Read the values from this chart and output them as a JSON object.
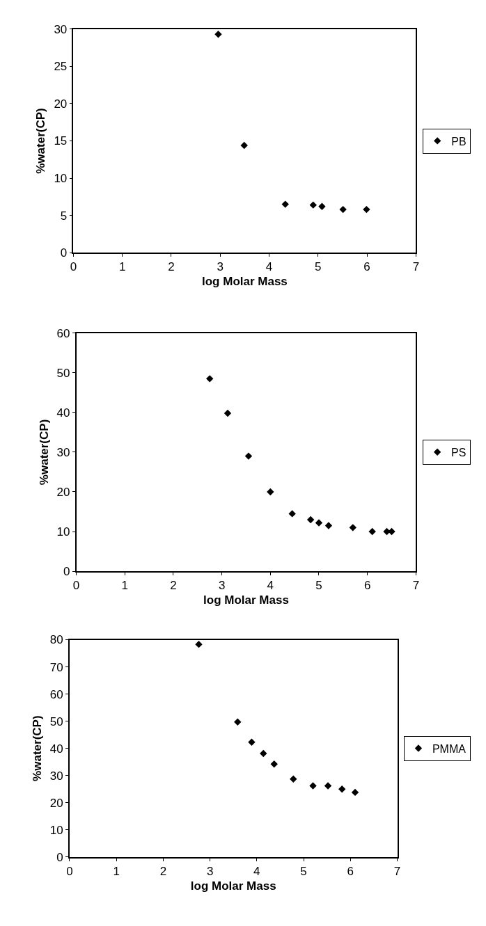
{
  "chart_data": [
    {
      "type": "scatter",
      "xlabel": "log Molar Mass",
      "ylabel": "%water(CP)",
      "x": [
        2.96,
        3.49,
        4.33,
        4.9,
        5.08,
        5.51,
        5.99
      ],
      "series": [
        {
          "name": "PB",
          "color": "#000000",
          "values": [
            29.3,
            14.4,
            6.5,
            6.4,
            6.2,
            5.8,
            5.8
          ]
        }
      ],
      "xlim": [
        0,
        7
      ],
      "xticks": [
        0,
        1,
        2,
        3,
        4,
        5,
        6,
        7
      ],
      "ylim": [
        0,
        30
      ],
      "yticks": [
        0,
        5,
        10,
        15,
        20,
        25,
        30
      ],
      "grid": false,
      "legend": "right",
      "marker": "diamond"
    },
    {
      "type": "scatter",
      "xlabel": "log Molar Mass",
      "ylabel": "%water(CP)",
      "x": [
        2.75,
        3.12,
        3.55,
        4.0,
        4.45,
        4.83,
        5.0,
        5.2,
        5.7,
        6.1,
        6.4,
        6.5
      ],
      "series": [
        {
          "name": "PS",
          "color": "#000000",
          "values": [
            48.5,
            39.8,
            29,
            20,
            14.5,
            13,
            12.2,
            11.5,
            11,
            10,
            10,
            10
          ]
        }
      ],
      "xlim": [
        0,
        7
      ],
      "xticks": [
        0,
        1,
        2,
        3,
        4,
        5,
        6,
        7
      ],
      "ylim": [
        0,
        60
      ],
      "yticks": [
        0,
        10,
        20,
        30,
        40,
        50,
        60
      ],
      "grid": false,
      "legend": "right",
      "marker": "diamond"
    },
    {
      "type": "scatter",
      "xlabel": "log Molar Mass",
      "ylabel": "%water(CP)",
      "x": [
        2.76,
        3.59,
        3.89,
        4.14,
        4.37,
        4.78,
        5.2,
        5.52,
        5.82,
        6.1
      ],
      "series": [
        {
          "name": "PMMA",
          "color": "#000000",
          "values": [
            78.3,
            49.7,
            42.3,
            38.1,
            34.2,
            28.7,
            26.2,
            26.2,
            25,
            23.8
          ]
        }
      ],
      "xlim": [
        0,
        7
      ],
      "xticks": [
        0,
        1,
        2,
        3,
        4,
        5,
        6,
        7
      ],
      "ylim": [
        0,
        80
      ],
      "yticks": [
        0,
        10,
        20,
        30,
        40,
        50,
        60,
        70,
        80
      ],
      "grid": false,
      "legend": "right",
      "marker": "diamond"
    }
  ]
}
